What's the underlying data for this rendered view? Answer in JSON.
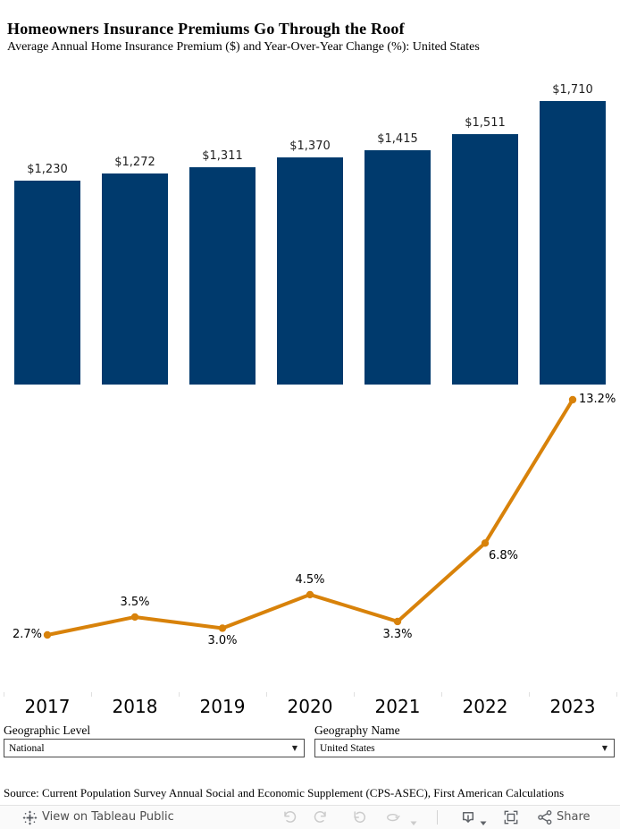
{
  "header": {
    "title": "Homeowners Insurance Premiums Go Through the Roof",
    "subtitle": "Average Annual Home Insurance Premium ($) and Year-Over-Year Change (%): United States"
  },
  "chart_data": [
    {
      "type": "bar",
      "title": "Average Annual Home Insurance Premium ($)",
      "categories": [
        "2017",
        "2018",
        "2019",
        "2020",
        "2021",
        "2022",
        "2023"
      ],
      "values": [
        1230,
        1272,
        1311,
        1370,
        1415,
        1511,
        1710
      ],
      "labels": [
        "$1,230",
        "$1,272",
        "$1,311",
        "$1,370",
        "$1,415",
        "$1,511",
        "$1,710"
      ],
      "bar_color": "#003a6d",
      "ylim": [
        0,
        1800
      ],
      "grid": false,
      "data_labels": "above-bars",
      "axis_labels_hidden": true
    },
    {
      "type": "line",
      "title": "Year-Over-Year Change (%)",
      "categories": [
        "2017",
        "2018",
        "2019",
        "2020",
        "2021",
        "2022",
        "2023"
      ],
      "values": [
        2.7,
        3.5,
        3.0,
        4.5,
        3.3,
        6.8,
        13.2
      ],
      "labels": [
        "2.7%",
        "3.5%",
        "3.0%",
        "4.5%",
        "3.3%",
        "6.8%",
        "13.2%"
      ],
      "label_positions": [
        "left",
        "above",
        "below",
        "above",
        "below",
        "below-right",
        "right"
      ],
      "line_color": "#d8820a",
      "marker": "circle",
      "grid": false,
      "axis_labels_hidden": true
    }
  ],
  "x_axis": {
    "shared_tick_labels": [
      "2017",
      "2018",
      "2019",
      "2020",
      "2021",
      "2022",
      "2023"
    ]
  },
  "filters": [
    {
      "label": "Geographic Level",
      "value": "National",
      "control": "dropdown"
    },
    {
      "label": "Geography Name",
      "value": "United States",
      "control": "dropdown"
    }
  ],
  "source_note": "Source: Current Population Survey Annual Social and Economic Supplement (CPS-ASEC), First American Calculations",
  "toolbar": {
    "view_label": "View on Tableau Public",
    "share_label": "Share",
    "icon_names": [
      "tableau-logo-icon",
      "undo-icon",
      "redo-icon",
      "reset-icon",
      "replay-icon",
      "caret-down-icon",
      "download-icon",
      "caret-down-icon",
      "fullscreen-icon",
      "share-icon"
    ]
  },
  "colors": {
    "bar": "#003a6d",
    "line": "#d8820a",
    "toolbar_icon_disabled": "#cbcbcb",
    "toolbar_icon_enabled": "#5f6368"
  }
}
